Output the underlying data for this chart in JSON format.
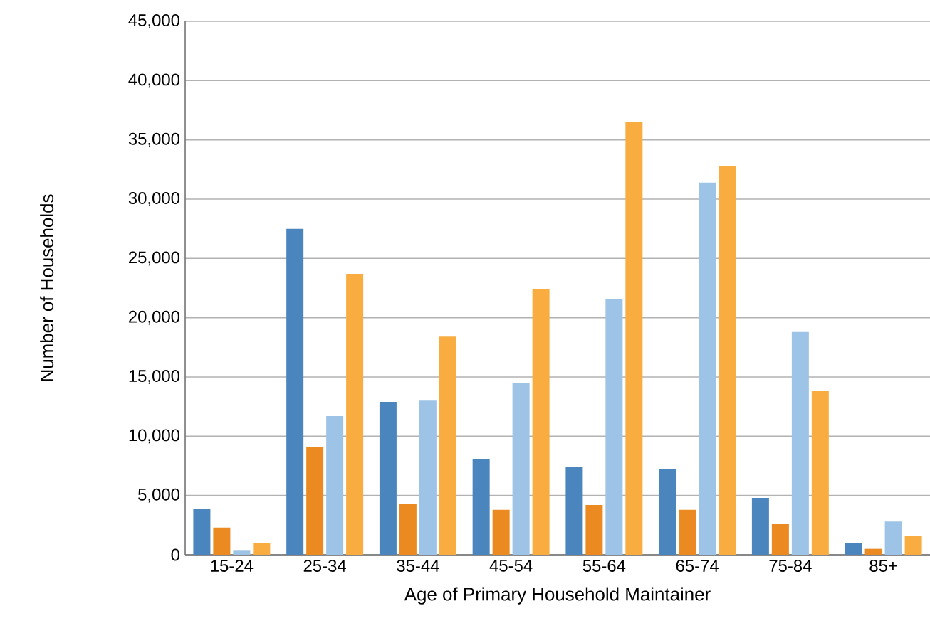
{
  "chart_data": {
    "type": "bar",
    "xlabel": "Age of Primary Household Maintainer",
    "ylabel": "Number of Households",
    "categories": [
      "15-24",
      "25-34",
      "35-44",
      "45-54",
      "55-64",
      "65-74",
      "75-84",
      "85+"
    ],
    "series": [
      {
        "color": "#4a86bd",
        "values": [
          3900,
          27500,
          12900,
          8100,
          7400,
          7200,
          4800,
          1000
        ]
      },
      {
        "color": "#ec8a22",
        "values": [
          2300,
          9100,
          4300,
          3800,
          4200,
          3800,
          2600,
          500
        ]
      },
      {
        "color": "#9dc3e6",
        "values": [
          400,
          11700,
          13000,
          14500,
          21600,
          31400,
          18800,
          2800
        ]
      },
      {
        "color": "#f9ad40",
        "values": [
          1000,
          23700,
          18400,
          22400,
          36500,
          32800,
          13800,
          1600
        ]
      }
    ],
    "ylim": [
      0,
      45000
    ],
    "yticks": [
      {
        "value": 0,
        "label": "0"
      },
      {
        "value": 5000,
        "label": "5,000"
      },
      {
        "value": 10000,
        "label": "10,000"
      },
      {
        "value": 15000,
        "label": "15,000"
      },
      {
        "value": 20000,
        "label": "20,000"
      },
      {
        "value": 25000,
        "label": "25,000"
      },
      {
        "value": 30000,
        "label": "30,000"
      },
      {
        "value": 35000,
        "label": "35,000"
      },
      {
        "value": 40000,
        "label": "40,000"
      },
      {
        "value": 45000,
        "label": "45,000"
      }
    ],
    "grid": "y"
  }
}
